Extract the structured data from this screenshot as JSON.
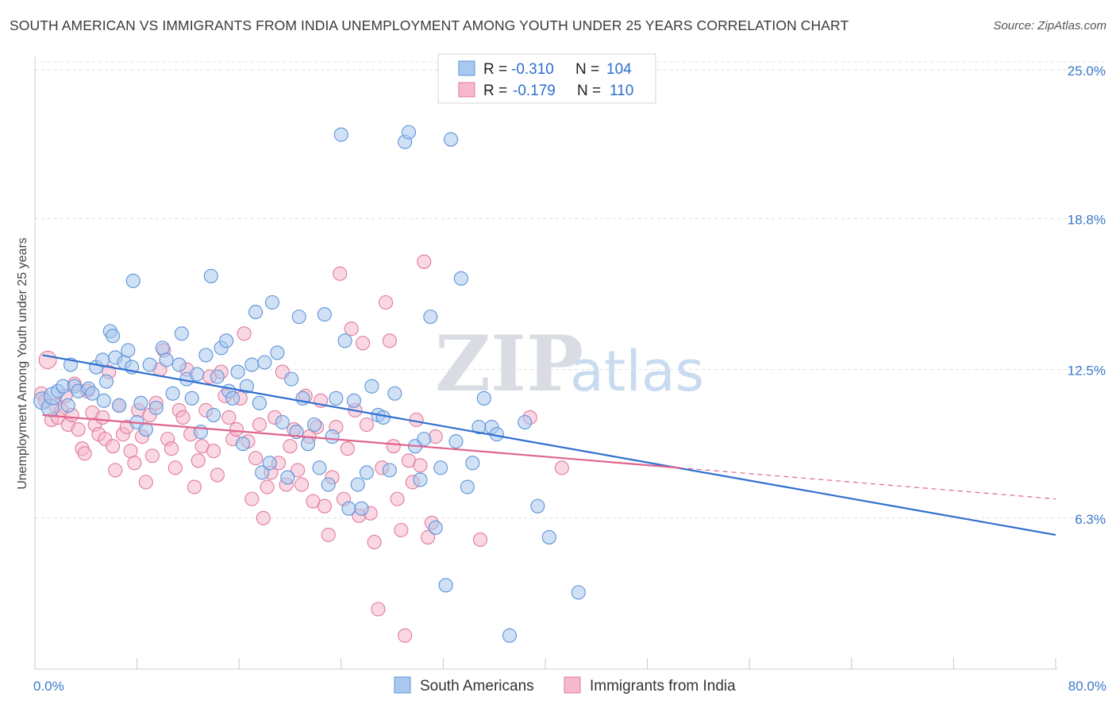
{
  "title": "SOUTH AMERICAN VS IMMIGRANTS FROM INDIA UNEMPLOYMENT AMONG YOUTH UNDER 25 YEARS CORRELATION CHART",
  "source": "Source: ZipAtlas.com",
  "watermark": {
    "zip": "ZIP",
    "atlas": "atlas"
  },
  "legend": {
    "rows": [
      {
        "r_label": "R =",
        "r_value": "-0.310",
        "n_label": "N =",
        "n_value": "104"
      },
      {
        "r_label": "R =",
        "r_value": "-0.179",
        "n_label": "N =",
        "n_value": "110"
      }
    ]
  },
  "chart_data": {
    "type": "scatter",
    "title": "SOUTH AMERICAN VS IMMIGRANTS FROM INDIA UNEMPLOYMENT AMONG YOUTH UNDER 25 YEARS CORRELATION CHART",
    "xlabel": "",
    "ylabel": "Unemployment Among Youth under 25 years",
    "xlim": [
      0,
      80
    ],
    "ylim": [
      0,
      25.6
    ],
    "x_tick_labels": [
      {
        "value": 0,
        "label": "0.0%"
      },
      {
        "value": 80,
        "label": "80.0%"
      }
    ],
    "y_tick_labels": [
      {
        "value": 25.0,
        "label": "25.0%"
      },
      {
        "value": 18.8,
        "label": "18.8%"
      },
      {
        "value": 12.5,
        "label": "12.5%"
      },
      {
        "value": 6.3,
        "label": "6.3%"
      }
    ],
    "colors": {
      "blue_fill": "#aac8ee",
      "blue_stroke": "#5e93d8",
      "blue_line": "#2f6fd0",
      "pink_fill": "#f6b8cc",
      "pink_stroke": "#e07a9c",
      "pink_line": "#e0648e"
    },
    "series": [
      {
        "name": "South Americans",
        "r": -0.31,
        "n": 104,
        "trend": {
          "x": [
            0.6,
            80
          ],
          "y": [
            13.1,
            5.6
          ]
        },
        "points": [
          [
            0.6,
            11.2
          ],
          [
            1.2,
            10.9
          ],
          [
            1.4,
            11.4
          ],
          [
            1.8,
            11.6
          ],
          [
            2.2,
            11.8
          ],
          [
            2.6,
            11.0
          ],
          [
            2.8,
            12.7
          ],
          [
            3.1,
            11.8
          ],
          [
            3.4,
            11.6
          ],
          [
            4.2,
            11.7
          ],
          [
            4.5,
            11.5
          ],
          [
            4.8,
            12.6
          ],
          [
            5.3,
            12.9
          ],
          [
            5.4,
            11.2
          ],
          [
            5.6,
            12.0
          ],
          [
            5.9,
            14.1
          ],
          [
            6.1,
            13.9
          ],
          [
            6.3,
            13.0
          ],
          [
            6.6,
            11.0
          ],
          [
            7.0,
            12.8
          ],
          [
            7.3,
            13.3
          ],
          [
            7.6,
            12.6
          ],
          [
            7.7,
            16.2
          ],
          [
            8.0,
            10.3
          ],
          [
            8.3,
            11.1
          ],
          [
            8.7,
            10.0
          ],
          [
            9.0,
            12.7
          ],
          [
            9.5,
            10.9
          ],
          [
            10.0,
            13.4
          ],
          [
            10.3,
            12.9
          ],
          [
            10.8,
            11.5
          ],
          [
            11.3,
            12.7
          ],
          [
            11.5,
            14.0
          ],
          [
            11.9,
            12.1
          ],
          [
            12.3,
            11.3
          ],
          [
            12.7,
            12.3
          ],
          [
            13.0,
            9.9
          ],
          [
            13.4,
            13.1
          ],
          [
            13.8,
            16.4
          ],
          [
            14.0,
            10.6
          ],
          [
            14.3,
            12.2
          ],
          [
            14.6,
            13.4
          ],
          [
            15.0,
            13.7
          ],
          [
            15.2,
            11.6
          ],
          [
            15.5,
            11.3
          ],
          [
            15.9,
            12.4
          ],
          [
            16.3,
            9.4
          ],
          [
            16.6,
            11.8
          ],
          [
            17.0,
            12.7
          ],
          [
            17.3,
            14.9
          ],
          [
            17.6,
            11.1
          ],
          [
            17.8,
            8.2
          ],
          [
            18.0,
            12.8
          ],
          [
            18.4,
            8.6
          ],
          [
            18.6,
            15.3
          ],
          [
            19.0,
            13.2
          ],
          [
            19.4,
            10.3
          ],
          [
            19.8,
            8.0
          ],
          [
            20.1,
            12.1
          ],
          [
            20.5,
            9.9
          ],
          [
            20.7,
            14.7
          ],
          [
            21.0,
            11.3
          ],
          [
            21.4,
            9.4
          ],
          [
            21.9,
            10.2
          ],
          [
            22.3,
            8.4
          ],
          [
            22.7,
            14.8
          ],
          [
            23.0,
            7.7
          ],
          [
            23.3,
            9.7
          ],
          [
            23.6,
            11.3
          ],
          [
            24.0,
            22.3
          ],
          [
            24.3,
            13.7
          ],
          [
            24.6,
            6.7
          ],
          [
            25.0,
            11.2
          ],
          [
            25.3,
            7.7
          ],
          [
            25.6,
            6.7
          ],
          [
            26.0,
            8.2
          ],
          [
            26.4,
            11.8
          ],
          [
            26.9,
            10.6
          ],
          [
            27.3,
            10.5
          ],
          [
            27.8,
            8.3
          ],
          [
            28.2,
            11.5
          ],
          [
            29.0,
            22.0
          ],
          [
            29.3,
            22.4
          ],
          [
            29.8,
            9.3
          ],
          [
            30.2,
            7.9
          ],
          [
            30.5,
            9.6
          ],
          [
            31.0,
            14.7
          ],
          [
            31.4,
            5.9
          ],
          [
            31.8,
            8.4
          ],
          [
            32.2,
            3.5
          ],
          [
            32.6,
            22.1
          ],
          [
            33.0,
            9.5
          ],
          [
            33.4,
            16.3
          ],
          [
            33.9,
            7.6
          ],
          [
            34.3,
            8.6
          ],
          [
            34.8,
            10.1
          ],
          [
            35.2,
            11.3
          ],
          [
            35.8,
            10.1
          ],
          [
            36.2,
            9.8
          ],
          [
            37.2,
            1.4
          ],
          [
            38.4,
            10.3
          ],
          [
            39.4,
            6.8
          ],
          [
            40.3,
            5.5
          ],
          [
            42.6,
            3.2
          ]
        ],
        "point_sizes_note": "markers approx equal size; a few larger at low x"
      },
      {
        "name": "Immigrants from India",
        "r": -0.179,
        "n": 110,
        "trend": {
          "x": [
            0.6,
            50.5
          ],
          "y": [
            10.6,
            8.4
          ]
        },
        "trend_extension": {
          "x": [
            50.5,
            80
          ],
          "y": [
            8.4,
            7.1
          ]
        },
        "points": [
          [
            0.5,
            11.5
          ],
          [
            0.8,
            11.2
          ],
          [
            1.0,
            12.9
          ],
          [
            1.3,
            10.4
          ],
          [
            1.6,
            11.0
          ],
          [
            1.8,
            10.5
          ],
          [
            2.1,
            10.8
          ],
          [
            2.4,
            11.4
          ],
          [
            2.6,
            10.2
          ],
          [
            2.9,
            10.6
          ],
          [
            3.1,
            11.9
          ],
          [
            3.4,
            10.0
          ],
          [
            3.7,
            9.2
          ],
          [
            3.9,
            9.0
          ],
          [
            4.1,
            11.6
          ],
          [
            4.5,
            10.7
          ],
          [
            4.7,
            10.2
          ],
          [
            5.0,
            9.8
          ],
          [
            5.3,
            10.5
          ],
          [
            5.5,
            9.6
          ],
          [
            5.8,
            12.4
          ],
          [
            6.1,
            9.3
          ],
          [
            6.3,
            8.3
          ],
          [
            6.6,
            11.0
          ],
          [
            6.9,
            9.8
          ],
          [
            7.2,
            10.1
          ],
          [
            7.5,
            9.1
          ],
          [
            7.8,
            8.6
          ],
          [
            8.1,
            10.8
          ],
          [
            8.4,
            9.7
          ],
          [
            8.7,
            7.8
          ],
          [
            9.0,
            10.6
          ],
          [
            9.2,
            8.9
          ],
          [
            9.5,
            11.1
          ],
          [
            9.8,
            12.5
          ],
          [
            10.1,
            13.3
          ],
          [
            10.4,
            9.6
          ],
          [
            10.7,
            9.2
          ],
          [
            11.0,
            8.4
          ],
          [
            11.3,
            10.8
          ],
          [
            11.6,
            10.5
          ],
          [
            11.9,
            12.5
          ],
          [
            12.2,
            9.8
          ],
          [
            12.5,
            7.6
          ],
          [
            12.8,
            8.7
          ],
          [
            13.1,
            9.3
          ],
          [
            13.4,
            10.8
          ],
          [
            13.7,
            12.2
          ],
          [
            14.0,
            9.1
          ],
          [
            14.3,
            8.1
          ],
          [
            14.6,
            12.4
          ],
          [
            14.9,
            11.4
          ],
          [
            15.2,
            10.5
          ],
          [
            15.5,
            9.6
          ],
          [
            15.8,
            10.0
          ],
          [
            16.1,
            11.3
          ],
          [
            16.4,
            14.0
          ],
          [
            16.7,
            9.5
          ],
          [
            17.0,
            7.1
          ],
          [
            17.3,
            8.8
          ],
          [
            17.6,
            10.2
          ],
          [
            17.9,
            6.3
          ],
          [
            18.2,
            7.6
          ],
          [
            18.5,
            8.2
          ],
          [
            18.8,
            10.5
          ],
          [
            19.1,
            8.6
          ],
          [
            19.4,
            12.4
          ],
          [
            19.7,
            7.7
          ],
          [
            20.0,
            9.3
          ],
          [
            20.3,
            10.0
          ],
          [
            20.6,
            8.3
          ],
          [
            20.9,
            7.7
          ],
          [
            21.2,
            11.4
          ],
          [
            21.5,
            9.7
          ],
          [
            21.8,
            7.0
          ],
          [
            22.1,
            10.1
          ],
          [
            22.4,
            11.2
          ],
          [
            22.7,
            6.8
          ],
          [
            23.0,
            5.6
          ],
          [
            23.3,
            8.0
          ],
          [
            23.6,
            10.1
          ],
          [
            23.9,
            16.5
          ],
          [
            24.2,
            7.1
          ],
          [
            24.5,
            9.2
          ],
          [
            24.8,
            14.2
          ],
          [
            25.1,
            10.8
          ],
          [
            25.4,
            6.4
          ],
          [
            25.7,
            13.6
          ],
          [
            26.0,
            10.2
          ],
          [
            26.3,
            6.5
          ],
          [
            26.6,
            5.3
          ],
          [
            26.9,
            2.5
          ],
          [
            27.2,
            8.4
          ],
          [
            27.5,
            15.3
          ],
          [
            27.8,
            13.7
          ],
          [
            28.1,
            9.3
          ],
          [
            28.4,
            7.1
          ],
          [
            28.7,
            5.8
          ],
          [
            29.0,
            1.4
          ],
          [
            29.3,
            8.7
          ],
          [
            29.6,
            7.8
          ],
          [
            29.9,
            10.4
          ],
          [
            30.2,
            8.5
          ],
          [
            30.5,
            17.0
          ],
          [
            30.8,
            5.5
          ],
          [
            31.1,
            6.1
          ],
          [
            31.4,
            9.7
          ],
          [
            34.9,
            5.4
          ],
          [
            38.8,
            10.5
          ],
          [
            41.3,
            8.4
          ]
        ]
      }
    ]
  }
}
